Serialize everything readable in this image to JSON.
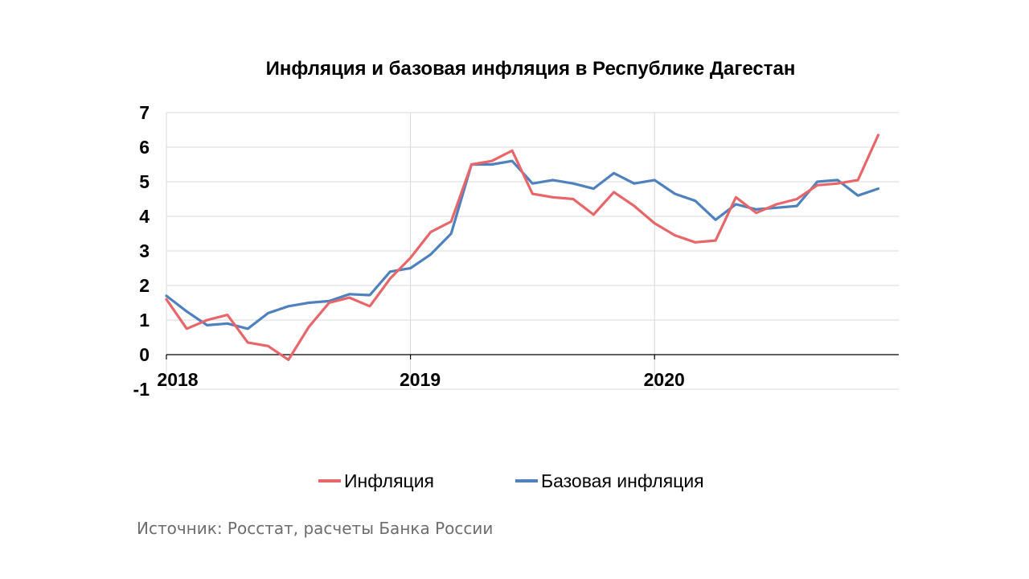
{
  "chart_data": {
    "type": "line",
    "title": "Инфляция и базовая инфляция в Республике Дагестан",
    "xlabel": "",
    "ylabel": "",
    "ylim": [
      -1,
      7
    ],
    "y_ticks": [
      -1,
      0,
      1,
      2,
      3,
      4,
      5,
      6,
      7
    ],
    "x_tick_labels": [
      "2018",
      "2019",
      "2020"
    ],
    "x_tick_dates": [
      "2018-01",
      "2019-01",
      "2020-01"
    ],
    "grid": true,
    "legend_position": "bottom",
    "x": [
      "2018-01",
      "2018-02",
      "2018-03",
      "2018-04",
      "2018-05",
      "2018-06",
      "2018-07",
      "2018-08",
      "2018-09",
      "2018-10",
      "2018-11",
      "2018-12",
      "2019-01",
      "2019-02",
      "2019-03",
      "2019-04",
      "2019-05",
      "2019-06",
      "2019-07",
      "2019-08",
      "2019-09",
      "2019-10",
      "2019-11",
      "2019-12",
      "2020-01",
      "2020-02",
      "2020-03",
      "2020-04",
      "2020-05",
      "2020-06",
      "2020-07",
      "2020-08",
      "2020-09",
      "2020-10",
      "2020-11",
      "2020-12"
    ],
    "series": [
      {
        "name": "Инфляция",
        "color": "#e8666a",
        "values": [
          1.6,
          0.75,
          1.0,
          1.15,
          0.35,
          0.25,
          -0.15,
          0.8,
          1.5,
          1.65,
          1.4,
          2.2,
          2.8,
          3.55,
          3.85,
          5.5,
          5.6,
          5.9,
          4.65,
          4.55,
          4.5,
          4.05,
          4.7,
          4.3,
          3.8,
          3.45,
          3.25,
          3.3,
          4.55,
          4.1,
          4.35,
          4.5,
          4.9,
          4.95,
          5.05,
          6.35
        ]
      },
      {
        "name": "Базовая инфляция",
        "color": "#4f81bd",
        "values": [
          1.7,
          1.25,
          0.85,
          0.9,
          0.75,
          1.2,
          1.4,
          1.5,
          1.55,
          1.75,
          1.72,
          2.4,
          2.5,
          2.9,
          3.5,
          5.5,
          5.5,
          5.6,
          4.95,
          5.05,
          4.95,
          4.8,
          5.25,
          4.95,
          5.05,
          4.65,
          4.45,
          3.9,
          4.35,
          4.2,
          4.25,
          4.3,
          5.0,
          5.05,
          4.6,
          4.8
        ]
      }
    ]
  },
  "source": "Источник: Росстат, расчеты Банка России"
}
